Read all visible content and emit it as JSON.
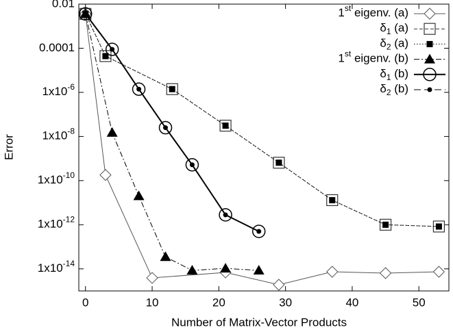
{
  "chart_data": {
    "type": "line",
    "xlabel": "Number of Matrix-Vector Products",
    "ylabel": "Error",
    "ylog": true,
    "grid": false,
    "legend": "top-right",
    "xlim": [
      -1,
      54.5
    ],
    "xticks": [
      0,
      10,
      20,
      30,
      40,
      50
    ],
    "ylim": [
      1e-15,
      0.01
    ],
    "yticks": [
      0.01,
      0.0001,
      {
        "value": 1e-06,
        "label": "1x10-6"
      },
      {
        "value": 1e-08,
        "label": "1x10-8"
      },
      {
        "value": 1e-10,
        "label": "1x10-10"
      },
      {
        "value": 1e-12,
        "label": "1x10-12"
      },
      {
        "value": 1e-14,
        "label": "1x10-14"
      }
    ],
    "series": [
      {
        "name": "1st eigenv. (a)",
        "color": "#555555",
        "marker": "diamond",
        "dash": "solid",
        "x": [
          0,
          3,
          10,
          21,
          29,
          37,
          45,
          53
        ],
        "values": [
          0.0036,
          1.8e-10,
          3.9e-15,
          6.9e-15,
          1.9e-15,
          7.4e-15,
          6.4e-15,
          7.4e-15
        ]
      },
      {
        "name": "δ1 (a)",
        "color": "#333333",
        "marker": "square-open",
        "dash": "dashed",
        "x": [
          0,
          3,
          13,
          21,
          29,
          37,
          45,
          53
        ],
        "values": [
          0.0036,
          4.4e-05,
          1.4e-06,
          3.1e-08,
          6.5e-10,
          1.3e-11,
          1e-12,
          8.3e-13
        ]
      },
      {
        "name": "δ2 (a)",
        "color": "#000000",
        "marker": "square-filled",
        "dash": "dotted",
        "x": [
          0,
          3,
          13,
          21,
          29,
          37,
          45,
          53
        ],
        "values": [
          0.0036,
          4.4e-05,
          1.4e-06,
          3.1e-08,
          6.5e-10,
          1.3e-11,
          1e-12,
          8.3e-13
        ]
      },
      {
        "name": "1st eigenv. (b)",
        "color": "#000000",
        "marker": "triangle",
        "dash": "dashdot",
        "x": [
          0,
          4,
          8,
          12,
          16,
          21,
          26
        ],
        "values": [
          0.0036,
          1.5e-08,
          2e-11,
          3.5e-14,
          8.5e-15,
          1.05e-14,
          8.5e-15
        ]
      },
      {
        "name": "δ1 (b)",
        "color": "#000000",
        "marker": "circle",
        "dash": "thick",
        "x": [
          0,
          4,
          8,
          12,
          16,
          21,
          26
        ],
        "values": [
          0.0036,
          8.9e-05,
          1.4e-06,
          2.5e-08,
          5.2e-10,
          2.8e-12,
          5e-13
        ]
      },
      {
        "name": "δ2 (b)",
        "color": "#000000",
        "marker": "dot",
        "dash": "longdash",
        "x": [
          0,
          4,
          8,
          12,
          16,
          21,
          26
        ],
        "values": [
          0.0036,
          8.9e-05,
          1.4e-06,
          2.5e-08,
          5.2e-10,
          2.8e-12,
          5e-13
        ]
      }
    ]
  }
}
